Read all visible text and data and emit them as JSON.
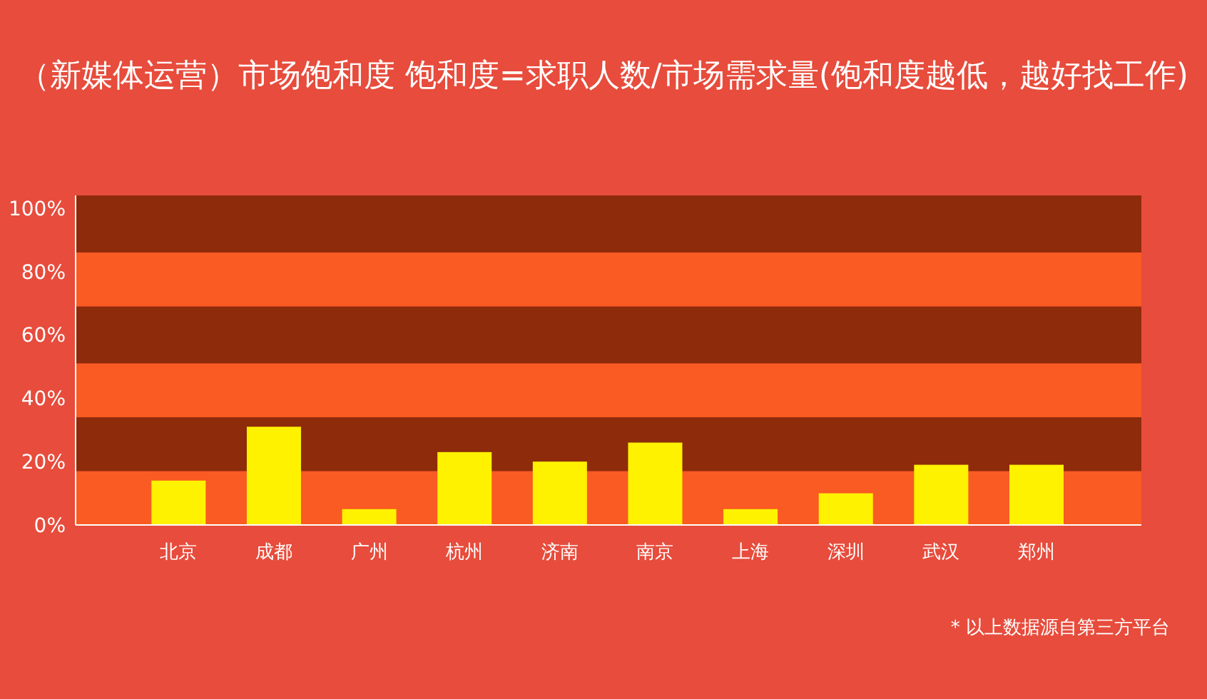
{
  "chart_data": {
    "type": "bar",
    "title": "（新媒体运营）市场饱和度 饱和度=求职人数/市场需求量(饱和度越低，越好找工作)",
    "categories": [
      "北京",
      "成都",
      "广州",
      "杭州",
      "济南",
      "南京",
      "上海",
      "深圳",
      "武汉",
      "郑州"
    ],
    "values": [
      14,
      31,
      5,
      23,
      20,
      26,
      5,
      10,
      19,
      19
    ],
    "color": "#fff200",
    "ylim": [
      0,
      104
    ],
    "yticks": [
      {
        "value": 0,
        "label": "0%"
      },
      {
        "value": 20,
        "label": "20%"
      },
      {
        "value": 40,
        "label": "40%"
      },
      {
        "value": 60,
        "label": "60%"
      },
      {
        "value": 80,
        "label": "80%"
      },
      {
        "value": 100,
        "label": "100%"
      }
    ],
    "bands": [
      {
        "axis": "y",
        "from": 0,
        "to": 17,
        "color": "#fa5b22"
      },
      {
        "axis": "y",
        "from": 17,
        "to": 34,
        "color": "#8e2b0b"
      },
      {
        "axis": "y",
        "from": 34,
        "to": 51,
        "color": "#fa5b22"
      },
      {
        "axis": "y",
        "from": 51,
        "to": 69,
        "color": "#8e2b0b"
      },
      {
        "axis": "y",
        "from": 69,
        "to": 86,
        "color": "#fa5b22"
      },
      {
        "axis": "y",
        "from": 86,
        "to": 104,
        "color": "#8e2b0b"
      }
    ],
    "annotations": [
      "* 以上数据源自第三方平台"
    ]
  }
}
